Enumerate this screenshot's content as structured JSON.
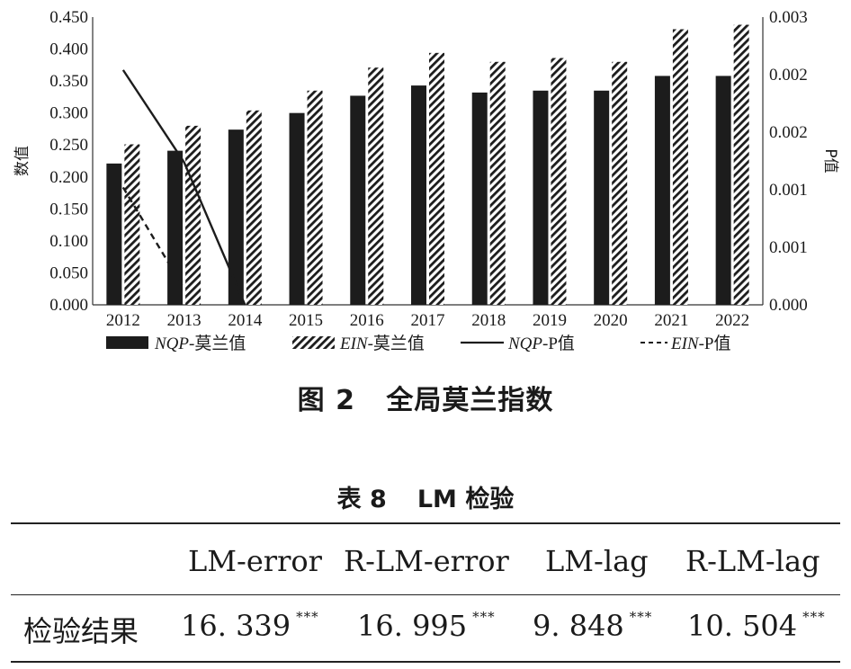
{
  "chart_data": {
    "type": "bar",
    "categories": [
      "2012",
      "2013",
      "2014",
      "2015",
      "2016",
      "2017",
      "2018",
      "2019",
      "2020",
      "2021",
      "2022"
    ],
    "series": [
      {
        "name": "NQP-莫兰值",
        "type": "bar",
        "axis": "left",
        "fill": "solid",
        "values": [
          0.221,
          0.241,
          0.274,
          0.3,
          0.327,
          0.343,
          0.332,
          0.335,
          0.335,
          0.358,
          0.358
        ]
      },
      {
        "name": "EIN-莫兰值",
        "type": "bar",
        "axis": "left",
        "fill": "hatched",
        "values": [
          0.251,
          0.28,
          0.304,
          0.335,
          0.371,
          0.394,
          0.38,
          0.386,
          0.38,
          0.431,
          0.438
        ]
      },
      {
        "name": "NQP-P值",
        "type": "line",
        "axis": "right",
        "style": "solid",
        "x": [
          "2012",
          "2013",
          "2014"
        ],
        "values": [
          0.00204,
          0.00124,
          0.0
        ]
      },
      {
        "name": "EIN-P值",
        "type": "line",
        "axis": "right",
        "style": "dashed",
        "x": [
          "2012",
          "2013"
        ],
        "values": [
          0.00102,
          0.00014
        ]
      }
    ],
    "ylabel_left": "数值",
    "ylabel_right": "P值",
    "ylim_left": [
      0,
      0.45
    ],
    "yticks_left": [
      "0.000",
      "0.050",
      "0.100",
      "0.150",
      "0.200",
      "0.250",
      "0.300",
      "0.350",
      "0.400",
      "0.450"
    ],
    "ylim_right": [
      0,
      0.0025
    ],
    "yticks_right": [
      "0.000",
      "0.001",
      "0.001",
      "0.002",
      "0.002",
      "0.003"
    ],
    "legend_position": "bottom",
    "legend": [
      {
        "italic": "NQP",
        "rest": "-莫兰值"
      },
      {
        "italic": "EIN",
        "rest": "-莫兰值"
      },
      {
        "italic": "NQP",
        "rest": "-P值"
      },
      {
        "italic": "EIN",
        "rest": "-P值"
      }
    ],
    "grid": false
  },
  "figure_caption": "图 2   全局莫兰指数",
  "table": {
    "caption_number": "表 8",
    "caption_title": "LM 检验",
    "headers": [
      "",
      "LM-error",
      "R-LM-error",
      "LM-lag",
      "R-LM-lag"
    ],
    "row_label": "检验结果",
    "values": [
      "16. 339",
      "16. 995",
      "9. 848",
      "10. 504"
    ],
    "significance": "***"
  }
}
